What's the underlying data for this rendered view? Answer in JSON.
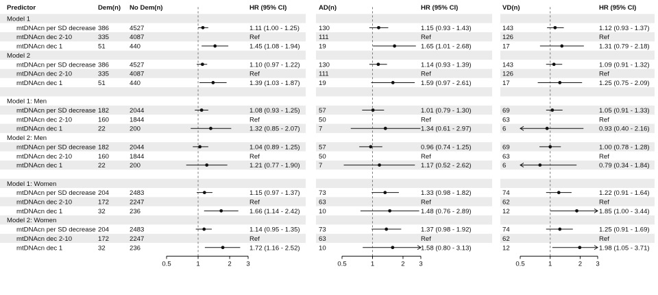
{
  "chart_data": {
    "type": "forest",
    "headers": {
      "predictor": "Predictor",
      "dem": "Dem(n)",
      "nodem": "No Dem(n)",
      "hr": "HR (95% CI)",
      "ad": "AD(n)",
      "vd": "VD(n)"
    },
    "x_ticks": [
      "0.5",
      "1",
      "2",
      "3"
    ],
    "x_tick_values": [
      0.5,
      1,
      2,
      3
    ],
    "reference_line": 1,
    "rows": [
      {
        "kind": "group",
        "label": "Model 1"
      },
      {
        "kind": "data",
        "label": "mtDNAcn per SD decrease",
        "dem": "386",
        "nodem": "4527",
        "all": {
          "hr": 1.11,
          "lo": 1.0,
          "hi": 1.25,
          "text": "1.11 (1.00 - 1.25)"
        },
        "ad": {
          "n": "130",
          "hr": 1.15,
          "lo": 0.93,
          "hi": 1.43,
          "text": "1.15 (0.93 - 1.43)"
        },
        "vd": {
          "n": "143",
          "hr": 1.12,
          "lo": 0.93,
          "hi": 1.37,
          "text": "1.12 (0.93 - 1.37)"
        }
      },
      {
        "kind": "data",
        "label": "mtDNAcn dec 2-10",
        "dem": "335",
        "nodem": "4087",
        "all": {
          "text": "Ref"
        },
        "ad": {
          "n": "111",
          "text": "Ref"
        },
        "vd": {
          "n": "126",
          "text": "Ref"
        }
      },
      {
        "kind": "data",
        "label": "mtDNAcn dec 1",
        "dem": "51",
        "nodem": "440",
        "all": {
          "hr": 1.45,
          "lo": 1.08,
          "hi": 1.94,
          "text": "1.45 (1.08 - 1.94)"
        },
        "ad": {
          "n": "19",
          "hr": 1.65,
          "lo": 1.01,
          "hi": 2.68,
          "text": "1.65 (1.01 - 2.68)"
        },
        "vd": {
          "n": "17",
          "hr": 1.31,
          "lo": 0.79,
          "hi": 2.18,
          "text": "1.31 (0.79 - 2.18)"
        }
      },
      {
        "kind": "group",
        "label": "Model 2"
      },
      {
        "kind": "data",
        "label": "mtDNAcn per SD decrease",
        "dem": "386",
        "nodem": "4527",
        "all": {
          "hr": 1.1,
          "lo": 0.97,
          "hi": 1.22,
          "text": "1.10 (0.97 - 1.22)"
        },
        "ad": {
          "n": "130",
          "hr": 1.14,
          "lo": 0.93,
          "hi": 1.39,
          "text": "1.14 (0.93 - 1.39)"
        },
        "vd": {
          "n": "143",
          "hr": 1.09,
          "lo": 0.91,
          "hi": 1.32,
          "text": "1.09 (0.91 - 1.32)"
        }
      },
      {
        "kind": "data",
        "label": "mtDNAcn dec 2-10",
        "dem": "335",
        "nodem": "4087",
        "all": {
          "text": "Ref"
        },
        "ad": {
          "n": "111",
          "text": "Ref"
        },
        "vd": {
          "n": "126",
          "text": "Ref"
        }
      },
      {
        "kind": "data",
        "label": "mtDNAcn dec 1",
        "dem": "51",
        "nodem": "440",
        "all": {
          "hr": 1.39,
          "lo": 1.03,
          "hi": 1.87,
          "text": "1.39 (1.03 - 1.87)"
        },
        "ad": {
          "n": "19",
          "hr": 1.59,
          "lo": 0.97,
          "hi": 2.61,
          "text": "1.59 (0.97 - 2.61)"
        },
        "vd": {
          "n": "17",
          "hr": 1.25,
          "lo": 0.75,
          "hi": 2.09,
          "text": "1.25 (0.75 - 2.09)"
        }
      },
      {
        "kind": "blank"
      },
      {
        "kind": "group",
        "label": "Model 1: Men"
      },
      {
        "kind": "data",
        "label": "mtDNAcn per SD decrease",
        "dem": "182",
        "nodem": "2044",
        "all": {
          "hr": 1.08,
          "lo": 0.93,
          "hi": 1.25,
          "text": "1.08 (0.93 - 1.25)"
        },
        "ad": {
          "n": "57",
          "hr": 1.01,
          "lo": 0.79,
          "hi": 1.3,
          "text": "1.01 (0.79 - 1.30)"
        },
        "vd": {
          "n": "69",
          "hr": 1.05,
          "lo": 0.91,
          "hi": 1.33,
          "text": "1.05 (0.91 - 1.33)"
        }
      },
      {
        "kind": "data",
        "label": "mtDNAcn dec 2-10",
        "dem": "160",
        "nodem": "1844",
        "all": {
          "text": "Ref"
        },
        "ad": {
          "n": "50",
          "text": "Ref"
        },
        "vd": {
          "n": "63",
          "text": "Ref"
        }
      },
      {
        "kind": "data",
        "label": "mtDNAcn dec 1",
        "dem": "22",
        "nodem": "200",
        "all": {
          "hr": 1.32,
          "lo": 0.85,
          "hi": 2.07,
          "text": "1.32 (0.85 - 2.07)"
        },
        "ad": {
          "n": "7",
          "hr": 1.34,
          "lo": 0.61,
          "hi": 2.97,
          "text": "1.34 (0.61 - 2.97)"
        },
        "vd": {
          "n": "6",
          "hr": 0.93,
          "lo": 0.4,
          "hi": 2.16,
          "text": "0.93 (0.40 - 2.16)",
          "arrow_left": true
        }
      },
      {
        "kind": "group",
        "label": "Model 2: Men"
      },
      {
        "kind": "data",
        "label": "mtDNAcn per SD decrease",
        "dem": "182",
        "nodem": "2044",
        "all": {
          "hr": 1.04,
          "lo": 0.89,
          "hi": 1.25,
          "text": "1.04 (0.89 - 1.25)"
        },
        "ad": {
          "n": "57",
          "hr": 0.96,
          "lo": 0.74,
          "hi": 1.25,
          "text": "0.96 (0.74 - 1.25)"
        },
        "vd": {
          "n": "69",
          "hr": 1.0,
          "lo": 0.78,
          "hi": 1.28,
          "text": "1.00 (0.78 - 1.28)"
        }
      },
      {
        "kind": "data",
        "label": "mtDNAcn dec 2-10",
        "dem": "160",
        "nodem": "1844",
        "all": {
          "text": "Ref"
        },
        "ad": {
          "n": "50",
          "text": "Ref"
        },
        "vd": {
          "n": "63",
          "text": "Ref"
        }
      },
      {
        "kind": "data",
        "label": "mtDNAcn dec 1",
        "dem": "22",
        "nodem": "200",
        "all": {
          "hr": 1.21,
          "lo": 0.77,
          "hi": 1.9,
          "text": "1.21 (0.77 - 1.90)"
        },
        "ad": {
          "n": "7",
          "hr": 1.17,
          "lo": 0.52,
          "hi": 2.62,
          "text": "1.17 (0.52 - 2.62)"
        },
        "vd": {
          "n": "6",
          "hr": 0.79,
          "lo": 0.34,
          "hi": 1.84,
          "text": "0.79 (0.34 - 1.84)",
          "arrow_left": true
        }
      },
      {
        "kind": "blank"
      },
      {
        "kind": "group",
        "label": "Model 1: Women"
      },
      {
        "kind": "data",
        "label": "mtDNAcn per SD decrease",
        "dem": "204",
        "nodem": "2483",
        "all": {
          "hr": 1.15,
          "lo": 0.97,
          "hi": 1.37,
          "text": "1.15 (0.97 - 1.37)"
        },
        "ad": {
          "n": "73",
          "hr": 1.33,
          "lo": 0.98,
          "hi": 1.82,
          "text": "1.33 (0.98 - 1.82)"
        },
        "vd": {
          "n": "74",
          "hr": 1.22,
          "lo": 0.91,
          "hi": 1.64,
          "text": "1.22 (0.91 - 1.64)"
        }
      },
      {
        "kind": "data",
        "label": "mtDNAcn dec 2-10",
        "dem": "172",
        "nodem": "2247",
        "all": {
          "text": "Ref"
        },
        "ad": {
          "n": "63",
          "text": "Ref"
        },
        "vd": {
          "n": "62",
          "text": "Ref"
        }
      },
      {
        "kind": "data",
        "label": "mtDNAcn dec 1",
        "dem": "32",
        "nodem": "236",
        "all": {
          "hr": 1.66,
          "lo": 1.14,
          "hi": 2.42,
          "text": "1.66 (1.14 - 2.42)"
        },
        "ad": {
          "n": "10",
          "hr": 1.48,
          "lo": 0.76,
          "hi": 2.89,
          "text": "1.48 (0.76 - 2.89)"
        },
        "vd": {
          "n": "12",
          "hr": 1.85,
          "lo": 1.0,
          "hi": 3.44,
          "text": "1.85 (1.00 - 3.44)",
          "arrow_right": true
        }
      },
      {
        "kind": "group",
        "label": "Model 2: Women"
      },
      {
        "kind": "data",
        "label": "mtDNAcn per SD decrease",
        "dem": "204",
        "nodem": "2483",
        "all": {
          "hr": 1.14,
          "lo": 0.95,
          "hi": 1.35,
          "text": "1.14 (0.95 - 1.35)"
        },
        "ad": {
          "n": "73",
          "hr": 1.37,
          "lo": 0.98,
          "hi": 1.92,
          "text": "1.37 (0.98 - 1.92)"
        },
        "vd": {
          "n": "74",
          "hr": 1.25,
          "lo": 0.91,
          "hi": 1.69,
          "text": "1.25 (0.91 - 1.69)"
        }
      },
      {
        "kind": "data",
        "label": "mtDNAcn dec 2-10",
        "dem": "172",
        "nodem": "2247",
        "all": {
          "text": "Ref"
        },
        "ad": {
          "n": "63",
          "text": "Ref"
        },
        "vd": {
          "n": "62",
          "text": "Ref"
        }
      },
      {
        "kind": "data",
        "label": "mtDNAcn dec 1",
        "dem": "32",
        "nodem": "236",
        "all": {
          "hr": 1.72,
          "lo": 1.16,
          "hi": 2.52,
          "text": "1.72 (1.16 - 2.52)"
        },
        "ad": {
          "n": "10",
          "hr": 1.58,
          "lo": 0.8,
          "hi": 3.13,
          "text": "1.58 (0.80 - 3.13)",
          "arrow_right": true
        },
        "vd": {
          "n": "12",
          "hr": 1.98,
          "lo": 1.05,
          "hi": 3.71,
          "text": "1.98 (1.05 - 3.71)",
          "arrow_right": true
        }
      }
    ],
    "colors": {
      "shade": "#ebebeb",
      "ink": "#111111",
      "ref_line": "#777777"
    }
  }
}
